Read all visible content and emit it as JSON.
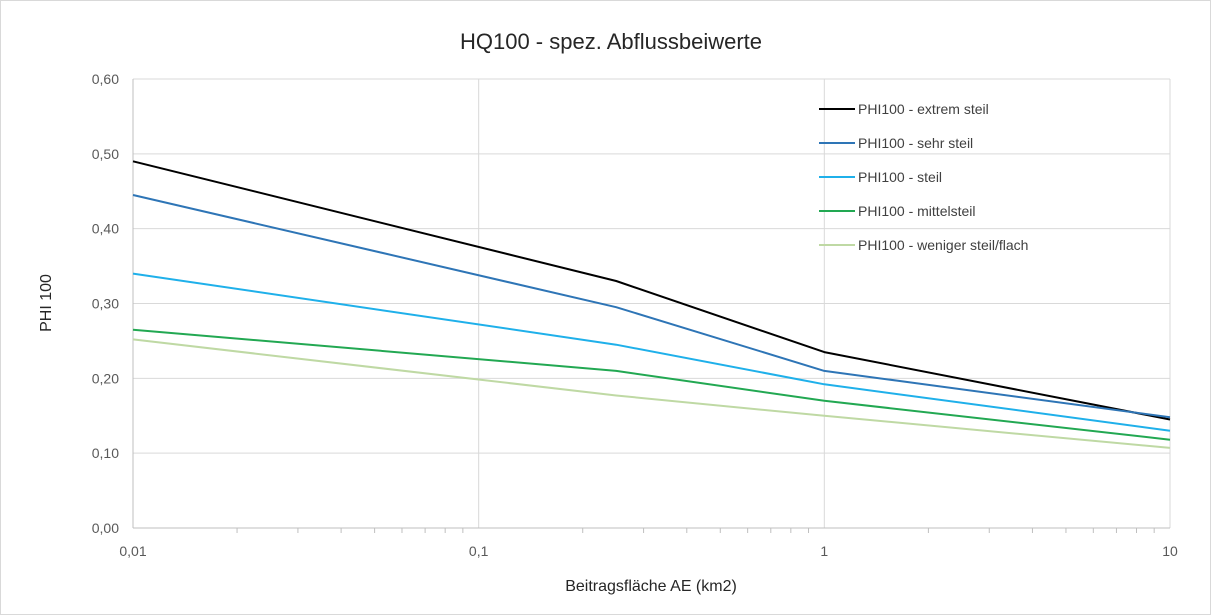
{
  "chart_data": {
    "type": "line",
    "title": "HQ100  - spez. Abflussbeiwerte",
    "xlabel": "Beitragsfläche AE (km2)",
    "ylabel": "PHI 100",
    "x_scale": "log",
    "xlim": [
      0.01,
      10
    ],
    "ylim": [
      0,
      0.6
    ],
    "x_ticks": [
      0.01,
      0.1,
      1,
      10
    ],
    "x_tick_labels": [
      "0,01",
      "0,1",
      "1",
      "10"
    ],
    "y_ticks": [
      0,
      0.1,
      0.2,
      0.3,
      0.4,
      0.5,
      0.6
    ],
    "y_tick_labels": [
      "0,00",
      "0,10",
      "0,20",
      "0,30",
      "0,40",
      "0,50",
      "0,60"
    ],
    "grid": true,
    "legend_position": "top-right",
    "x": [
      0.01,
      0.25,
      1,
      10
    ],
    "series": [
      {
        "name": "PHI100 - extrem steil",
        "color": "#000000",
        "values": [
          0.49,
          0.33,
          0.235,
          0.145
        ]
      },
      {
        "name": "PHI100 - sehr steil",
        "color": "#2e75b6",
        "values": [
          0.445,
          0.295,
          0.21,
          0.148
        ]
      },
      {
        "name": "PHI100 - steil",
        "color": "#1fb0ea",
        "values": [
          0.34,
          0.245,
          0.192,
          0.13
        ]
      },
      {
        "name": "PHI100 - mittelsteil",
        "color": "#22a852",
        "values": [
          0.265,
          0.21,
          0.17,
          0.118
        ]
      },
      {
        "name": "PHI100 - weniger steil/flach",
        "color": "#bfd9a4",
        "values": [
          0.252,
          0.177,
          0.15,
          0.107
        ]
      }
    ]
  }
}
